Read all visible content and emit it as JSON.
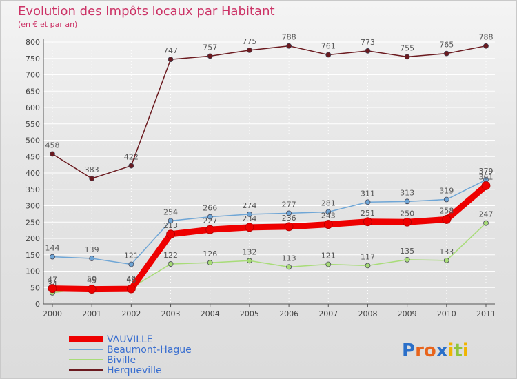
{
  "chart_data": {
    "type": "line",
    "title": "Evolution des Impôts locaux par Habitant",
    "subtitle": "(en € et par an)",
    "x": [
      "2000",
      "2001",
      "2002",
      "2003",
      "2004",
      "2005",
      "2006",
      "2007",
      "2008",
      "2009",
      "2010",
      "2011"
    ],
    "ylim": [
      0,
      800
    ],
    "yticks": [
      0,
      50,
      100,
      150,
      200,
      250,
      300,
      350,
      400,
      450,
      500,
      550,
      600,
      650,
      700,
      750,
      800
    ],
    "grid": true,
    "legend_position": "bottom-left",
    "series": [
      {
        "name": "Herqueville",
        "color": "#6b1a1f",
        "values": [
          458,
          383,
          422,
          747,
          757,
          775,
          788,
          761,
          773,
          755,
          765,
          788
        ]
      },
      {
        "name": "Beaumont-Hague",
        "color": "#6fa6d6",
        "values": [
          144,
          139,
          121,
          254,
          266,
          274,
          277,
          281,
          311,
          313,
          319,
          379
        ]
      },
      {
        "name": "Biville",
        "color": "#a8dc78",
        "values": [
          34,
          50,
          49,
          122,
          126,
          132,
          113,
          121,
          117,
          135,
          133,
          247
        ]
      },
      {
        "name": "VAUVILLE",
        "color": "#ee0000",
        "values": [
          47,
          45,
          46,
          213,
          227,
          234,
          236,
          243,
          251,
          250,
          258,
          361
        ]
      }
    ],
    "legend": [
      "VAUVILLE",
      "Beaumont-Hague",
      "Biville",
      "Herqueville"
    ]
  },
  "logo": {
    "text": "Proxiti",
    "letters": [
      "P",
      "r",
      "o",
      "x",
      "i",
      "t",
      "i"
    ],
    "colors": [
      "#2a6fc9",
      "#e8641c",
      "#e8641c",
      "#2a6fc9",
      "#f0b400",
      "#8fc43c",
      "#f0b400"
    ]
  }
}
